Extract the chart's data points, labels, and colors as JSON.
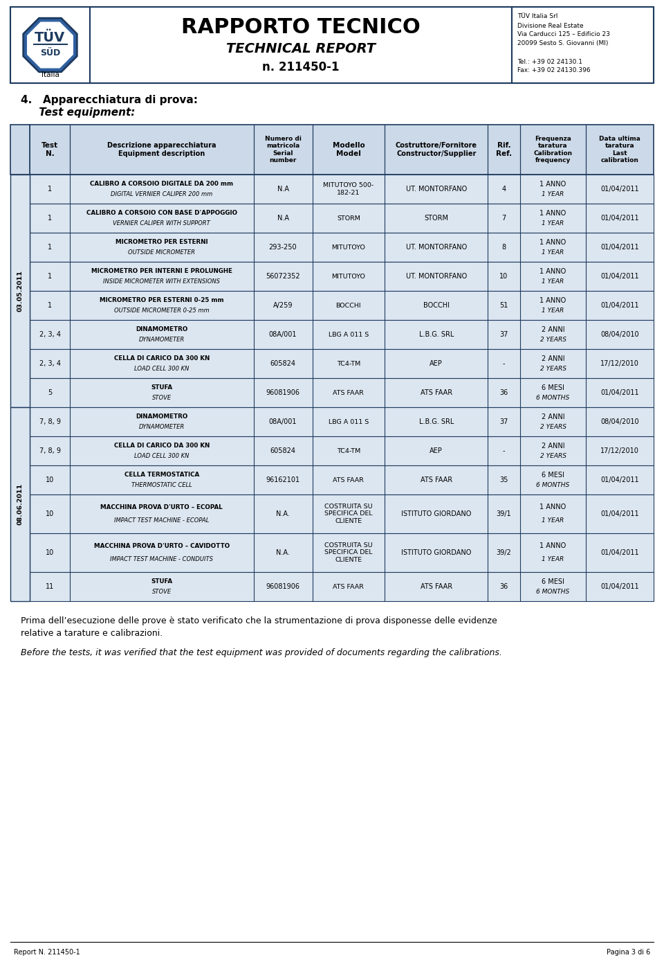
{
  "page_bg": "#ffffff",
  "header_title": "RAPPORTO TECNICO",
  "header_subtitle": "TECHNICAL REPORT",
  "header_docnum": "n. 211450-1",
  "company_info": [
    "TÜV Italia Srl",
    "Divisione Real Estate",
    "Via Carducci 125 – Edificio 23",
    "20099 Sesto S. Giovanni (MI)",
    "",
    "Tel.: +39 02 24130.1",
    "Fax: +39 02 24130.396"
  ],
  "section_title": "4.   Apparecchiatura di prova:",
  "section_subtitle": "     Test equipment:",
  "header_bg": "#ccd9e8",
  "row_bg": "#dce6f0",
  "border_color": "#1e3a5f",
  "date_group_1": "03.05.2011",
  "date_group_2": "08.06.2011",
  "col_headers": [
    "Test\nN.",
    "Descrizione apparecchiatura\nEquipment description",
    "Numero di\nmatricola\nSerial\nnumber",
    "Modello\nModel",
    "Costruttore/Fornitore\nConstructor/Supplier",
    "Rif.\nRef.",
    "Frequenza\ntaratura\nCalibration\nfrequency",
    "Data ultima\ntaratura\nLast\ncalibration"
  ],
  "rows": [
    {
      "test_n": "1",
      "desc1": "CALIBRO A CORSOIO DIGITALE DA 200 mm",
      "desc2": "DIGITAL VERNIER CALIPER 200 mm",
      "serial": "N.A",
      "model": "MITUTOYO 500-\n182-21",
      "supplier": "UT. MONTORFANO",
      "rif": "4",
      "freq1": "1 ANNO",
      "freq2": "1 YEAR",
      "last_cal": "01/04/2011",
      "group": 1
    },
    {
      "test_n": "1",
      "desc1": "CALIBRO A CORSOIO CON BASE D'APPOGGIO",
      "desc2": "VERNIER CALIPER WITH SUPPORT",
      "serial": "N.A",
      "model": "STORM",
      "supplier": "STORM",
      "rif": "7",
      "freq1": "1 ANNO",
      "freq2": "1 YEAR",
      "last_cal": "01/04/2011",
      "group": 1
    },
    {
      "test_n": "1",
      "desc1": "MICROMETRO PER ESTERNI",
      "desc2": "OUTSIDE MICROMETER",
      "serial": "293-250",
      "model": "MITUTOYO",
      "supplier": "UT. MONTORFANO",
      "rif": "8",
      "freq1": "1 ANNO",
      "freq2": "1 YEAR",
      "last_cal": "01/04/2011",
      "group": 1
    },
    {
      "test_n": "1",
      "desc1": "MICROMETRO PER INTERNI E PROLUNGHE",
      "desc2": "INSIDE MICROMETER WITH EXTENSIONS",
      "serial": "56072352",
      "model": "MITUTOYO",
      "supplier": "UT. MONTORFANO",
      "rif": "10",
      "freq1": "1 ANNO",
      "freq2": "1 YEAR",
      "last_cal": "01/04/2011",
      "group": 1
    },
    {
      "test_n": "1",
      "desc1": "MICROMETRO PER ESTERNI 0-25 mm",
      "desc2": "OUTSIDE MICROMETER 0-25 mm",
      "serial": "A/259",
      "model": "BOCCHI",
      "supplier": "BOCCHI",
      "rif": "51",
      "freq1": "1 ANNO",
      "freq2": "1 YEAR",
      "last_cal": "01/04/2011",
      "group": 1
    },
    {
      "test_n": "2, 3, 4",
      "desc1": "DINAMOMETRO",
      "desc2": "DYNAMOMETER",
      "serial": "08A/001",
      "model": "LBG A 011 S",
      "supplier": "L.B.G. SRL",
      "rif": "37",
      "freq1": "2 ANNI",
      "freq2": "2 YEARS",
      "last_cal": "08/04/2010",
      "group": 1
    },
    {
      "test_n": "2, 3, 4",
      "desc1": "CELLA DI CARICO DA 300 KN",
      "desc2": "LOAD CELL 300 KN",
      "serial": "605824",
      "model": "TC4-TM",
      "supplier": "AEP",
      "rif": "-",
      "freq1": "2 ANNI",
      "freq2": "2 YEARS",
      "last_cal": "17/12/2010",
      "group": 1
    },
    {
      "test_n": "5",
      "desc1": "STUFA",
      "desc2": "STOVE",
      "serial": "96081906",
      "model": "ATS FAAR",
      "supplier": "ATS FAAR",
      "rif": "36",
      "freq1": "6 MESI",
      "freq2": "6 MONTHS",
      "last_cal": "01/04/2011",
      "group": 1
    },
    {
      "test_n": "7, 8, 9",
      "desc1": "DINAMOMETRO",
      "desc2": "DYNAMOMETER",
      "serial": "08A/001",
      "model": "LBG A 011 S",
      "supplier": "L.B.G. SRL",
      "rif": "37",
      "freq1": "2 ANNI",
      "freq2": "2 YEARS",
      "last_cal": "08/04/2010",
      "group": 2
    },
    {
      "test_n": "7, 8, 9",
      "desc1": "CELLA DI CARICO DA 300 KN",
      "desc2": "LOAD CELL 300 KN",
      "serial": "605824",
      "model": "TC4-TM",
      "supplier": "AEP",
      "rif": "-",
      "freq1": "2 ANNI",
      "freq2": "2 YEARS",
      "last_cal": "17/12/2010",
      "group": 2
    },
    {
      "test_n": "10",
      "desc1": "CELLA TERMOSTATICA",
      "desc2": "THERMOSTATIC CELL",
      "serial": "96162101",
      "model": "ATS FAAR",
      "supplier": "ATS FAAR",
      "rif": "35",
      "freq1": "6 MESI",
      "freq2": "6 MONTHS",
      "last_cal": "01/04/2011",
      "group": 2
    },
    {
      "test_n": "10",
      "desc1": "MACCHINA PROVA D'URTO – ECOPAL",
      "desc2": "IMPACT TEST MACHINE - ECOPAL",
      "serial": "N.A.",
      "model": "COSTRUITA SU\nSPECIFICA DEL\nCLIENTE",
      "supplier": "ISTITUTO GIORDANO",
      "rif": "39/1",
      "freq1": "1 ANNO",
      "freq2": "1 YEAR",
      "last_cal": "01/04/2011",
      "group": 2
    },
    {
      "test_n": "10",
      "desc1": "MACCHINA PROVA D'URTO – CAVIDOTTO",
      "desc2": "IMPACT TEST MACHINE - CONDUITS",
      "serial": "N.A.",
      "model": "COSTRUITA SU\nSPECIFICA DEL\nCLIENTE",
      "supplier": "ISTITUTO GIORDANO",
      "rif": "39/2",
      "freq1": "1 ANNO",
      "freq2": "1 YEAR",
      "last_cal": "01/04/2011",
      "group": 2
    },
    {
      "test_n": "11",
      "desc1": "STUFA",
      "desc2": "STOVE",
      "serial": "96081906",
      "model": "ATS FAAR",
      "supplier": "ATS FAAR",
      "rif": "36",
      "freq1": "6 MESI",
      "freq2": "6 MONTHS",
      "last_cal": "01/04/2011",
      "group": 2
    }
  ],
  "footer_text1": "Prima dell’esecuzione delle prove è stato verificato che la strumentazione di prova disponesse delle evidenze",
  "footer_text1b": "relative a tarature e calibrazioni.",
  "footer_text2": "Before the tests, it was verified that the test equipment was provided of documents regarding the calibrations.",
  "footer_left": "Report N. 211450-1",
  "footer_right": "Pagina 3 di 6"
}
